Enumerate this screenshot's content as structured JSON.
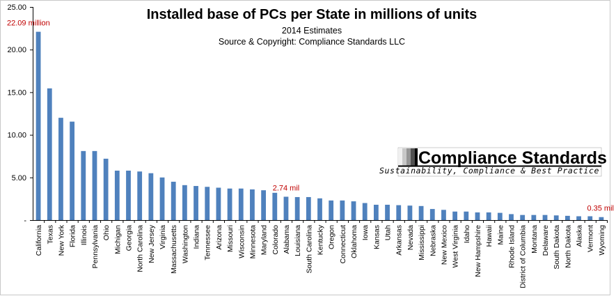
{
  "chart_data": {
    "type": "bar",
    "title": "Installed base of PCs per State in millions of units",
    "subtitle_lines": [
      "2014 Estimates",
      "Source & Copyright: Compliance Standards LLC"
    ],
    "ylim": [
      0,
      25
    ],
    "yticks": [
      0,
      5,
      10,
      15,
      20,
      25
    ],
    "ytick_labels": [
      "-",
      "5.00",
      "10.00",
      "15.00",
      "20.00",
      "25.00"
    ],
    "categories": [
      "California",
      "Texas",
      "New York",
      "Florida",
      "Illinois",
      "Pennsylvania",
      "Ohio",
      "Michigan",
      "Georgia",
      "North Carolina",
      "New Jersey",
      "Virginia",
      "Massachusetts",
      "Washington",
      "Indiana",
      "Tennessee",
      "Arizona",
      "Missouri",
      "Wisconsin",
      "Minnesota",
      "Maryland",
      "Colorado",
      "Alabama",
      "Louisiana",
      "South Carolina",
      "Kentucky",
      "Oregon",
      "Connecticut",
      "Oklahoma",
      "Iowa",
      "Kansas",
      "Utah",
      "Arkansas",
      "Nevada",
      "Mississippi",
      "Nebraska",
      "New Mexico",
      "West Virginia",
      "Idaho",
      "New Hampshire",
      "Hawaii",
      "Maine",
      "Rhode Island",
      "District of Columbia",
      "Montana",
      "Delaware",
      "South Dakota",
      "North Dakota",
      "Alaska",
      "Vermont",
      "Wyoming"
    ],
    "values": [
      22.09,
      15.45,
      12.0,
      11.55,
      8.1,
      8.1,
      7.2,
      5.8,
      5.8,
      5.7,
      5.5,
      5.0,
      4.5,
      4.1,
      4.0,
      3.9,
      3.8,
      3.7,
      3.7,
      3.6,
      3.5,
      3.2,
      2.74,
      2.7,
      2.7,
      2.55,
      2.3,
      2.3,
      2.2,
      2.0,
      1.8,
      1.8,
      1.75,
      1.7,
      1.65,
      1.3,
      1.2,
      1.0,
      1.0,
      0.9,
      0.9,
      0.85,
      0.7,
      0.6,
      0.6,
      0.6,
      0.55,
      0.5,
      0.45,
      0.45,
      0.35
    ],
    "annotations": [
      {
        "text": "22.09 million",
        "category": "California"
      },
      {
        "text": "2.74 mil",
        "category": "Alabama"
      },
      {
        "text": "0.35 mil",
        "category": "Wyoming"
      }
    ],
    "bar_color": "#4f81bd",
    "annotation_color": "#c00000"
  },
  "logo": {
    "name": "Compliance Standards",
    "tagline": "Sustainability, Compliance & Best Practice"
  }
}
